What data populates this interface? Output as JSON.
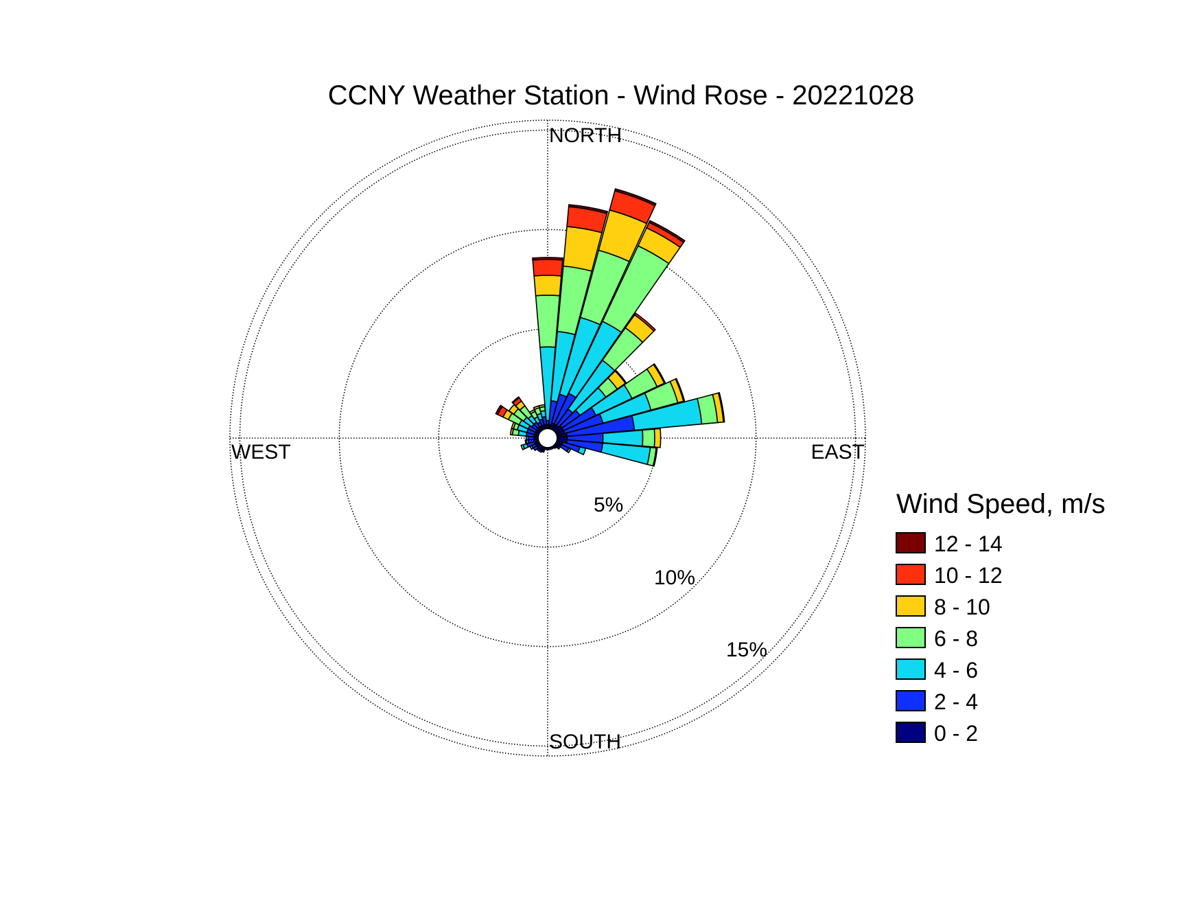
{
  "chart_data": {
    "type": "wind_rose",
    "title": "CCNY Weather Station - Wind Rose - 20221028",
    "direction_labels": {
      "north": "NORTH",
      "east": "EAST",
      "south": "SOUTH",
      "west": "WEST"
    },
    "rings": [
      {
        "value": 5,
        "label": "5%"
      },
      {
        "value": 10,
        "label": "10%"
      },
      {
        "value": 15,
        "label": "15%"
      }
    ],
    "radial_max": 15.5,
    "legend": {
      "title": "Wind Speed, m/s",
      "bins": [
        {
          "label": "12 - 14",
          "color": "#7a0000"
        },
        {
          "label": "10 - 12",
          "color": "#ff3010"
        },
        {
          "label": "8 - 10",
          "color": "#ffd010"
        },
        {
          "label": "6 - 8",
          "color": "#80ff80"
        },
        {
          "label": "4 - 6",
          "color": "#10d8f0"
        },
        {
          "label": "2 - 4",
          "color": "#1030ff"
        },
        {
          "label": "0 - 2",
          "color": "#000080"
        }
      ]
    },
    "bin_order_inner_to_outer": [
      "0 - 2",
      "2 - 4",
      "4 - 6",
      "6 - 8",
      "8 - 10",
      "10 - 12",
      "12 - 14"
    ],
    "sectors": [
      {
        "direction": 0,
        "values": [
          0.2,
          0.2,
          3.7,
          2.6,
          1.0,
          0.8,
          0.1
        ]
      },
      {
        "direction": 10,
        "values": [
          0.2,
          1.2,
          3.5,
          3.3,
          2.0,
          1.0,
          0.1
        ]
      },
      {
        "direction": 20,
        "values": [
          0.3,
          1.5,
          4.0,
          3.5,
          2.1,
          1.0,
          0.1
        ]
      },
      {
        "direction": 30,
        "values": [
          0.3,
          1.7,
          4.0,
          4.2,
          1.0,
          0.3,
          0.1
        ]
      },
      {
        "direction": 40,
        "values": [
          0.3,
          1.0,
          3.0,
          2.0,
          0.8,
          0.1,
          0.0
        ]
      },
      {
        "direction": 50,
        "values": [
          0.4,
          1.1,
          1.6,
          0.7,
          0.5,
          0.05,
          0.0
        ]
      },
      {
        "direction": 60,
        "values": [
          0.4,
          1.8,
          2.0,
          1.4,
          0.4,
          0.05,
          0.0
        ]
      },
      {
        "direction": 70,
        "values": [
          0.4,
          2.0,
          2.5,
          1.4,
          0.3,
          0.05,
          0.0
        ]
      },
      {
        "direction": 80,
        "values": [
          0.5,
          3.4,
          3.4,
          0.8,
          0.3,
          0.05,
          0.0
        ]
      },
      {
        "direction": 90,
        "values": [
          0.5,
          1.8,
          2.0,
          0.6,
          0.3,
          0.0,
          0.0
        ]
      },
      {
        "direction": 100,
        "values": [
          0.5,
          1.8,
          2.4,
          0.3,
          0.05,
          0.0,
          0.0
        ]
      },
      {
        "direction": 110,
        "values": [
          0.3,
          0.9,
          0.3,
          0.0,
          0.0,
          0.0,
          0.0
        ]
      },
      {
        "direction": 120,
        "values": [
          0.3,
          0.4,
          0.1,
          0.0,
          0.0,
          0.0,
          0.0
        ]
      },
      {
        "direction": 130,
        "values": [
          0.2,
          0.1,
          0.0,
          0.0,
          0.0,
          0.0,
          0.0
        ]
      },
      {
        "direction": 140,
        "values": [
          0.1,
          0.05,
          0.0,
          0.0,
          0.0,
          0.0,
          0.0
        ]
      },
      {
        "direction": 150,
        "values": [
          0.1,
          0.0,
          0.0,
          0.0,
          0.0,
          0.0,
          0.0
        ]
      },
      {
        "direction": 160,
        "values": [
          0.1,
          0.0,
          0.0,
          0.0,
          0.0,
          0.0,
          0.0
        ]
      },
      {
        "direction": 170,
        "values": [
          0.1,
          0.0,
          0.0,
          0.0,
          0.0,
          0.0,
          0.0
        ]
      },
      {
        "direction": 180,
        "values": [
          0.1,
          0.0,
          0.0,
          0.0,
          0.0,
          0.0,
          0.0
        ]
      },
      {
        "direction": 190,
        "values": [
          0.1,
          0.0,
          0.0,
          0.0,
          0.0,
          0.0,
          0.0
        ]
      },
      {
        "direction": 200,
        "values": [
          0.2,
          0.05,
          0.0,
          0.0,
          0.0,
          0.0,
          0.0
        ]
      },
      {
        "direction": 210,
        "values": [
          0.2,
          0.1,
          0.0,
          0.0,
          0.0,
          0.0,
          0.0
        ]
      },
      {
        "direction": 220,
        "values": [
          0.2,
          0.1,
          0.0,
          0.0,
          0.0,
          0.0,
          0.0
        ]
      },
      {
        "direction": 230,
        "values": [
          0.2,
          0.2,
          0.0,
          0.0,
          0.0,
          0.0,
          0.0
        ]
      },
      {
        "direction": 240,
        "values": [
          0.2,
          0.2,
          0.1,
          0.0,
          0.0,
          0.0,
          0.0
        ]
      },
      {
        "direction": 250,
        "values": [
          0.2,
          0.4,
          0.2,
          0.1,
          0.0,
          0.0,
          0.0
        ]
      },
      {
        "direction": 260,
        "values": [
          0.2,
          0.3,
          0.1,
          0.05,
          0.0,
          0.0,
          0.0
        ]
      },
      {
        "direction": 270,
        "values": [
          0.2,
          0.3,
          0.1,
          0.0,
          0.0,
          0.0,
          0.0
        ]
      },
      {
        "direction": 280,
        "values": [
          0.2,
          0.4,
          0.4,
          0.3,
          0.1,
          0.0,
          0.0
        ]
      },
      {
        "direction": 290,
        "values": [
          0.2,
          0.4,
          0.5,
          0.2,
          0.1,
          0.0,
          0.0
        ]
      },
      {
        "direction": 300,
        "values": [
          0.2,
          0.4,
          0.5,
          0.6,
          0.3,
          0.3,
          0.1
        ]
      },
      {
        "direction": 310,
        "values": [
          0.2,
          0.3,
          0.5,
          0.6,
          0.3,
          0.0,
          0.0
        ]
      },
      {
        "direction": 320,
        "values": [
          0.2,
          0.3,
          0.4,
          0.6,
          0.3,
          0.2,
          0.05
        ]
      },
      {
        "direction": 330,
        "values": [
          0.2,
          0.2,
          0.3,
          0.3,
          0.1,
          0.0,
          0.0
        ]
      },
      {
        "direction": 340,
        "values": [
          0.2,
          0.3,
          0.3,
          0.3,
          0.1,
          0.0,
          0.0
        ]
      },
      {
        "direction": 350,
        "values": [
          0.2,
          0.4,
          0.3,
          0.2,
          0.1,
          0.0,
          0.0
        ]
      }
    ]
  }
}
